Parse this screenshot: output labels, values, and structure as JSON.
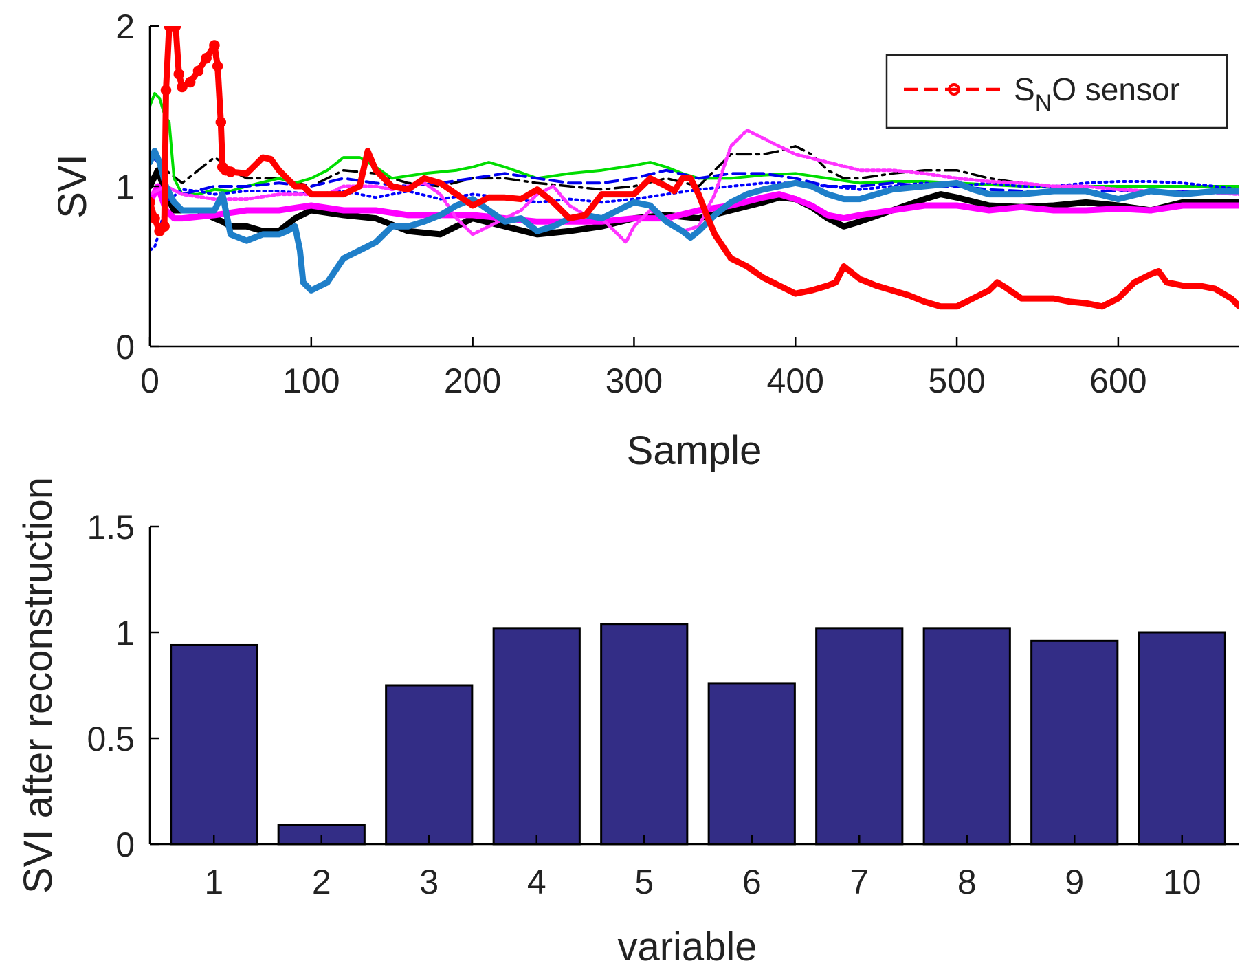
{
  "chart_data": [
    {
      "type": "line",
      "title": "",
      "xlabel": "Sample",
      "ylabel": "SVI",
      "xlim": [
        0,
        675
      ],
      "ylim": [
        0,
        2
      ],
      "xticks": [
        "0",
        "100",
        "200",
        "300",
        "400",
        "500",
        "600"
      ],
      "yticks": [
        "0",
        "1",
        "2"
      ],
      "legend": {
        "position": "top-right",
        "label_main": "S",
        "label_sub": "N",
        "label_rest": "O sensor"
      },
      "series": [
        {
          "name": "S_NO sensor",
          "color": "#ff0000",
          "style": "dashed-circle",
          "x": [
            0,
            3,
            6,
            9,
            10,
            12,
            14,
            16,
            18,
            20,
            25,
            30,
            35,
            40,
            42,
            44,
            45,
            47,
            50,
            60,
            70,
            75,
            80,
            85,
            90,
            95,
            100,
            110,
            120,
            130,
            135,
            140,
            150,
            160,
            170,
            180,
            190,
            200,
            210,
            220,
            230,
            240,
            250,
            260,
            270,
            280,
            290,
            300,
            310,
            320,
            325,
            330,
            335,
            340,
            345,
            350,
            360,
            370,
            380,
            390,
            400,
            410,
            420,
            425,
            430,
            440,
            450,
            460,
            470,
            480,
            490,
            500,
            510,
            520,
            525,
            530,
            540,
            550,
            560,
            570,
            580,
            590,
            600,
            610,
            620,
            625,
            630,
            640,
            650,
            660,
            670,
            675
          ],
          "y": [
            0.9,
            0.8,
            0.72,
            0.75,
            1.6,
            2.0,
            2.0,
            2.0,
            1.7,
            1.62,
            1.65,
            1.72,
            1.8,
            1.88,
            1.75,
            1.4,
            1.12,
            1.1,
            1.09,
            1.08,
            1.18,
            1.17,
            1.1,
            1.05,
            1.0,
            1.0,
            0.95,
            0.95,
            0.95,
            1.0,
            1.22,
            1.1,
            1.0,
            0.98,
            1.05,
            1.02,
            0.95,
            0.88,
            0.93,
            0.93,
            0.92,
            0.98,
            0.9,
            0.8,
            0.82,
            0.95,
            0.95,
            0.95,
            1.05,
            1.0,
            0.97,
            1.05,
            1.05,
            0.95,
            0.82,
            0.7,
            0.55,
            0.5,
            0.43,
            0.38,
            0.33,
            0.35,
            0.38,
            0.4,
            0.5,
            0.42,
            0.38,
            0.35,
            0.32,
            0.28,
            0.25,
            0.25,
            0.3,
            0.35,
            0.4,
            0.37,
            0.3,
            0.3,
            0.3,
            0.28,
            0.27,
            0.25,
            0.3,
            0.4,
            0.45,
            0.47,
            0.4,
            0.38,
            0.38,
            0.36,
            0.3,
            0.25
          ]
        },
        {
          "name": "black solid",
          "color": "#000000",
          "style": "thick-solid",
          "x": [
            0,
            5,
            10,
            15,
            20,
            30,
            40,
            45,
            50,
            60,
            70,
            80,
            90,
            100,
            120,
            140,
            160,
            180,
            200,
            220,
            240,
            260,
            280,
            300,
            320,
            340,
            360,
            380,
            390,
            400,
            410,
            420,
            430,
            440,
            460,
            480,
            490,
            500,
            520,
            540,
            560,
            580,
            600,
            620,
            640,
            660,
            675
          ],
          "y": [
            1.0,
            1.1,
            0.95,
            0.85,
            0.85,
            0.85,
            0.8,
            0.78,
            0.75,
            0.75,
            0.72,
            0.72,
            0.8,
            0.85,
            0.82,
            0.8,
            0.72,
            0.7,
            0.8,
            0.75,
            0.7,
            0.72,
            0.75,
            0.8,
            0.82,
            0.8,
            0.85,
            0.9,
            0.93,
            0.92,
            0.87,
            0.8,
            0.75,
            0.78,
            0.85,
            0.92,
            0.95,
            0.93,
            0.88,
            0.87,
            0.88,
            0.9,
            0.88,
            0.85,
            0.9,
            0.9,
            0.9
          ]
        },
        {
          "name": "black dash-dot",
          "color": "#000000",
          "style": "dash-dot",
          "x": [
            0,
            10,
            20,
            30,
            40,
            45,
            50,
            60,
            80,
            100,
            120,
            140,
            160,
            180,
            200,
            220,
            240,
            260,
            280,
            300,
            320,
            340,
            350,
            360,
            380,
            390,
            400,
            410,
            420,
            430,
            440,
            460,
            480,
            500,
            520,
            540,
            560,
            580,
            600,
            620,
            640,
            660,
            675
          ],
          "y": [
            1.05,
            1.1,
            1.02,
            1.1,
            1.18,
            1.15,
            1.1,
            1.05,
            1.05,
            1.0,
            1.1,
            1.08,
            1.02,
            1.0,
            1.05,
            1.05,
            1.02,
            1.0,
            0.98,
            1.0,
            1.05,
            1.0,
            1.1,
            1.2,
            1.2,
            1.22,
            1.25,
            1.2,
            1.1,
            1.05,
            1.05,
            1.08,
            1.1,
            1.1,
            1.05,
            1.02,
            1.0,
            1.0,
            0.98,
            0.97,
            0.97,
            0.97,
            0.97
          ]
        },
        {
          "name": "green solid",
          "color": "#00dd00",
          "style": "solid",
          "x": [
            0,
            3,
            6,
            9,
            12,
            15,
            20,
            30,
            40,
            50,
            60,
            80,
            90,
            100,
            110,
            120,
            130,
            140,
            150,
            170,
            190,
            200,
            210,
            220,
            240,
            260,
            280,
            300,
            310,
            320,
            330,
            340,
            350,
            360,
            380,
            400,
            420,
            440,
            460,
            480,
            500,
            520,
            540,
            560,
            580,
            600,
            620,
            640,
            660,
            675
          ],
          "y": [
            1.5,
            1.58,
            1.55,
            1.45,
            1.4,
            1.05,
            0.95,
            0.95,
            0.98,
            0.97,
            1.0,
            1.05,
            1.02,
            1.05,
            1.1,
            1.18,
            1.18,
            1.12,
            1.05,
            1.08,
            1.1,
            1.12,
            1.15,
            1.12,
            1.05,
            1.08,
            1.1,
            1.13,
            1.15,
            1.12,
            1.08,
            1.05,
            1.05,
            1.05,
            1.07,
            1.08,
            1.05,
            1.02,
            1.03,
            1.03,
            1.02,
            1.01,
            1.0,
            1.0,
            1.0,
            1.0,
            1.0,
            1.0,
            1.0,
            1.0
          ]
        },
        {
          "name": "blue dashed",
          "color": "#0000ee",
          "style": "dashed",
          "x": [
            0,
            5,
            10,
            20,
            40,
            60,
            80,
            100,
            120,
            140,
            160,
            180,
            200,
            220,
            240,
            260,
            280,
            300,
            320,
            340,
            360,
            380,
            400,
            420,
            440,
            460,
            480,
            500,
            520,
            540,
            560,
            580,
            600,
            620,
            640,
            660,
            675
          ],
          "y": [
            1.2,
            1.15,
            1.0,
            0.95,
            1.0,
            1.0,
            1.02,
            1.0,
            1.05,
            1.02,
            1.0,
            1.02,
            1.05,
            1.08,
            1.05,
            1.02,
            1.02,
            1.05,
            1.1,
            1.05,
            1.08,
            1.08,
            1.05,
            1.0,
            1.0,
            1.02,
            1.0,
            1.0,
            0.98,
            0.97,
            0.97,
            0.97,
            0.97,
            0.97,
            0.97,
            0.97,
            0.97
          ]
        },
        {
          "name": "blue dotted",
          "color": "#0000ff",
          "style": "dotted",
          "x": [
            0,
            3,
            6,
            10,
            20,
            30,
            40,
            60,
            80,
            100,
            120,
            140,
            160,
            180,
            200,
            220,
            240,
            260,
            280,
            300,
            320,
            340,
            360,
            380,
            400,
            420,
            440,
            460,
            480,
            500,
            520,
            540,
            560,
            580,
            600,
            620,
            640,
            660,
            675
          ],
          "y": [
            0.6,
            0.62,
            0.72,
            0.9,
            0.98,
            0.97,
            0.95,
            0.97,
            0.97,
            0.95,
            0.97,
            0.93,
            0.97,
            0.92,
            0.95,
            0.93,
            0.9,
            0.92,
            0.9,
            0.92,
            0.95,
            0.98,
            1.0,
            1.02,
            1.02,
            1.0,
            0.98,
            1.0,
            1.02,
            1.0,
            1.02,
            1.0,
            1.0,
            1.02,
            1.03,
            1.03,
            1.02,
            1.0,
            0.98
          ]
        },
        {
          "name": "magenta solid",
          "color": "#ff00ff",
          "style": "thick-solid",
          "x": [
            0,
            5,
            10,
            15,
            20,
            40,
            60,
            80,
            100,
            120,
            140,
            160,
            180,
            200,
            220,
            240,
            260,
            280,
            300,
            320,
            340,
            360,
            380,
            390,
            400,
            410,
            420,
            430,
            440,
            460,
            480,
            500,
            520,
            540,
            560,
            580,
            600,
            620,
            640,
            660,
            675
          ],
          "y": [
            0.9,
            1.0,
            0.85,
            0.8,
            0.8,
            0.82,
            0.85,
            0.85,
            0.88,
            0.85,
            0.85,
            0.82,
            0.82,
            0.82,
            0.8,
            0.78,
            0.78,
            0.78,
            0.8,
            0.8,
            0.85,
            0.88,
            0.93,
            0.95,
            0.92,
            0.88,
            0.82,
            0.8,
            0.82,
            0.85,
            0.88,
            0.88,
            0.85,
            0.87,
            0.85,
            0.85,
            0.86,
            0.85,
            0.88,
            0.88,
            0.88
          ]
        },
        {
          "name": "magenta dotted",
          "color": "#ff33ff",
          "style": "dotted-marker",
          "x": [
            0,
            10,
            20,
            40,
            60,
            80,
            100,
            110,
            120,
            140,
            150,
            160,
            170,
            180,
            190,
            200,
            210,
            220,
            230,
            240,
            250,
            260,
            270,
            280,
            290,
            295,
            300,
            310,
            320,
            330,
            340,
            350,
            360,
            370,
            380,
            390,
            400,
            420,
            440,
            460,
            480,
            500,
            520,
            540,
            560,
            580,
            600,
            620,
            640,
            660,
            675
          ],
          "y": [
            0.95,
            1.0,
            0.95,
            0.92,
            0.92,
            0.95,
            0.95,
            0.95,
            1.0,
            1.0,
            0.98,
            1.0,
            1.02,
            0.95,
            0.8,
            0.7,
            0.75,
            0.8,
            0.85,
            0.95,
            1.0,
            0.88,
            0.82,
            0.8,
            0.7,
            0.65,
            0.75,
            0.85,
            0.8,
            0.72,
            0.75,
            0.95,
            1.25,
            1.35,
            1.3,
            1.25,
            1.2,
            1.15,
            1.1,
            1.1,
            1.08,
            1.05,
            1.03,
            1.02,
            1.0,
            1.0,
            0.98,
            0.97,
            0.96,
            0.96,
            0.95
          ]
        },
        {
          "name": "teal star",
          "color": "#1f7fc9",
          "style": "thick-star",
          "x": [
            0,
            3,
            6,
            10,
            15,
            20,
            30,
            40,
            45,
            50,
            60,
            70,
            80,
            85,
            90,
            93,
            95,
            100,
            110,
            120,
            130,
            140,
            150,
            160,
            170,
            180,
            190,
            200,
            210,
            220,
            230,
            240,
            250,
            260,
            270,
            280,
            290,
            300,
            310,
            320,
            330,
            335,
            340,
            350,
            360,
            370,
            380,
            390,
            400,
            410,
            420,
            430,
            440,
            460,
            480,
            500,
            510,
            520,
            540,
            560,
            580,
            600,
            620,
            640,
            660,
            675
          ],
          "y": [
            1.15,
            1.22,
            1.15,
            1.0,
            0.9,
            0.85,
            0.85,
            0.85,
            0.95,
            0.7,
            0.66,
            0.7,
            0.7,
            0.72,
            0.75,
            0.6,
            0.4,
            0.35,
            0.4,
            0.55,
            0.6,
            0.65,
            0.75,
            0.75,
            0.78,
            0.82,
            0.88,
            0.92,
            0.85,
            0.78,
            0.8,
            0.72,
            0.75,
            0.8,
            0.82,
            0.8,
            0.85,
            0.9,
            0.88,
            0.78,
            0.72,
            0.68,
            0.72,
            0.82,
            0.9,
            0.95,
            0.98,
            1.0,
            1.02,
            1.0,
            0.95,
            0.92,
            0.92,
            0.98,
            1.0,
            1.02,
            0.98,
            0.95,
            0.95,
            0.97,
            0.97,
            0.92,
            0.97,
            0.95,
            0.97,
            0.97
          ]
        }
      ]
    },
    {
      "type": "bar",
      "title": "",
      "xlabel": "variable",
      "ylabel": "SVI after reconstruction",
      "categories": [
        "1",
        "2",
        "3",
        "4",
        "5",
        "6",
        "7",
        "8",
        "9",
        "10"
      ],
      "values": [
        0.94,
        0.09,
        0.75,
        1.02,
        1.04,
        0.76,
        1.02,
        1.02,
        0.96,
        1.0
      ],
      "ylim": [
        0,
        1.5
      ],
      "yticks": [
        "0",
        "0.5",
        "1",
        "1.5"
      ],
      "color": "#332d86"
    }
  ]
}
